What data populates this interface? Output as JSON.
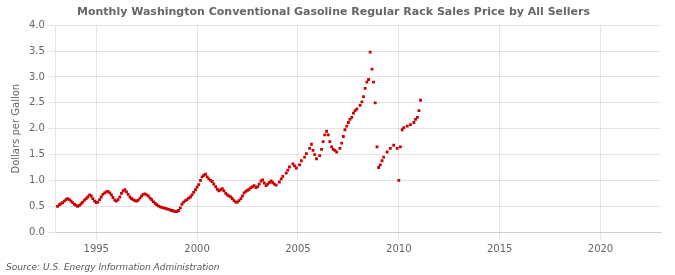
{
  "chart_data": {
    "type": "scatter",
    "title": "Monthly Washington Conventional Gasoline Regular Rack Sales Price by All Sellers",
    "y_label": "Dollars per Gallon",
    "source": "Source: U.S. Energy Information Administration",
    "color": "#CC0000",
    "marker": "square",
    "grid": true,
    "xlim": [
      1993.0,
      2023.0
    ],
    "ylim": [
      0.0,
      4.0
    ],
    "xticks": [
      1995,
      2000,
      2005,
      2010,
      2015,
      2020
    ],
    "yticks": [
      {
        "value": 0,
        "label": "0.0"
      },
      0.5,
      {
        "value": 1,
        "label": "1.0"
      },
      1.5,
      {
        "value": 2,
        "label": "2.0"
      },
      2.5,
      {
        "value": 3,
        "label": "3.0"
      },
      3.5,
      {
        "value": 4,
        "label": "4.0"
      }
    ],
    "x": [
      1993.08,
      1993.17,
      1993.25,
      1993.33,
      1993.42,
      1993.5,
      1993.58,
      1993.67,
      1993.75,
      1993.83,
      1993.92,
      1994.0,
      1994.08,
      1994.17,
      1994.25,
      1994.33,
      1994.42,
      1994.5,
      1994.58,
      1994.67,
      1994.75,
      1994.83,
      1994.92,
      1995.0,
      1995.08,
      1995.17,
      1995.25,
      1995.33,
      1995.42,
      1995.5,
      1995.58,
      1995.67,
      1995.75,
      1995.83,
      1995.92,
      1996.0,
      1996.08,
      1996.17,
      1996.25,
      1996.33,
      1996.42,
      1996.5,
      1996.58,
      1996.67,
      1996.75,
      1996.83,
      1996.92,
      1997.0,
      1997.08,
      1997.17,
      1997.25,
      1997.33,
      1997.42,
      1997.5,
      1997.58,
      1997.67,
      1997.75,
      1997.83,
      1997.92,
      1998.0,
      1998.08,
      1998.17,
      1998.25,
      1998.33,
      1998.42,
      1998.5,
      1998.58,
      1998.67,
      1998.75,
      1998.83,
      1998.92,
      1999.0,
      1999.08,
      1999.17,
      1999.25,
      1999.33,
      1999.42,
      1999.5,
      1999.58,
      1999.67,
      1999.75,
      1999.83,
      1999.92,
      2000.0,
      2000.08,
      2000.17,
      2000.25,
      2000.33,
      2000.42,
      2000.5,
      2000.58,
      2000.67,
      2000.75,
      2000.83,
      2000.92,
      2001.0,
      2001.08,
      2001.17,
      2001.25,
      2001.33,
      2001.42,
      2001.5,
      2001.58,
      2001.67,
      2001.75,
      2001.83,
      2001.92,
      2002.0,
      2002.08,
      2002.17,
      2002.25,
      2002.33,
      2002.42,
      2002.5,
      2002.58,
      2002.67,
      2002.75,
      2002.83,
      2002.92,
      2003.0,
      2003.08,
      2003.17,
      2003.25,
      2003.33,
      2003.42,
      2003.5,
      2003.58,
      2003.67,
      2003.75,
      2003.83,
      2003.92,
      2004.08,
      2004.17,
      2004.25,
      2004.42,
      2004.5,
      2004.58,
      2004.75,
      2004.83,
      2004.92,
      2005.08,
      2005.17,
      2005.33,
      2005.42,
      2005.58,
      2005.67,
      2005.75,
      2005.83,
      2005.92,
      2006.08,
      2006.17,
      2006.25,
      2006.33,
      2006.42,
      2006.5,
      2006.58,
      2006.67,
      2006.75,
      2006.83,
      2006.92,
      2007.08,
      2007.17,
      2007.25,
      2007.33,
      2007.42,
      2007.5,
      2007.58,
      2007.67,
      2007.75,
      2007.83,
      2007.92,
      2008.08,
      2008.17,
      2008.25,
      2008.33,
      2008.42,
      2008.5,
      2008.58,
      2008.67,
      2008.75,
      2008.83,
      2008.92,
      2009.0,
      2009.08,
      2009.17,
      2009.25,
      2009.42,
      2009.58,
      2009.75,
      2009.92,
      2010.0,
      2010.08,
      2010.17,
      2010.25,
      2010.42,
      2010.58,
      2010.75,
      2010.83,
      2010.92,
      2011.0,
      2011.08
    ],
    "values": [
      0.5,
      0.53,
      0.55,
      0.57,
      0.6,
      0.63,
      0.65,
      0.63,
      0.6,
      0.57,
      0.54,
      0.52,
      0.5,
      0.52,
      0.55,
      0.58,
      0.62,
      0.65,
      0.68,
      0.72,
      0.7,
      0.65,
      0.6,
      0.57,
      0.58,
      0.63,
      0.68,
      0.73,
      0.76,
      0.78,
      0.79,
      0.76,
      0.72,
      0.67,
      0.62,
      0.6,
      0.63,
      0.68,
      0.75,
      0.8,
      0.82,
      0.78,
      0.73,
      0.68,
      0.65,
      0.63,
      0.61,
      0.6,
      0.62,
      0.66,
      0.7,
      0.73,
      0.74,
      0.72,
      0.7,
      0.66,
      0.63,
      0.59,
      0.56,
      0.53,
      0.51,
      0.49,
      0.48,
      0.47,
      0.46,
      0.45,
      0.44,
      0.43,
      0.42,
      0.41,
      0.4,
      0.4,
      0.42,
      0.47,
      0.54,
      0.58,
      0.61,
      0.63,
      0.66,
      0.68,
      0.72,
      0.77,
      0.82,
      0.87,
      0.92,
      1.0,
      1.07,
      1.1,
      1.12,
      1.07,
      1.03,
      1.0,
      0.98,
      0.93,
      0.88,
      0.83,
      0.8,
      0.82,
      0.84,
      0.8,
      0.75,
      0.72,
      0.7,
      0.68,
      0.65,
      0.61,
      0.58,
      0.58,
      0.61,
      0.65,
      0.7,
      0.76,
      0.79,
      0.81,
      0.83,
      0.86,
      0.88,
      0.9,
      0.86,
      0.88,
      0.93,
      0.99,
      1.01,
      0.95,
      0.9,
      0.93,
      0.96,
      0.99,
      0.96,
      0.93,
      0.91,
      0.97,
      1.03,
      1.08,
      1.14,
      1.2,
      1.26,
      1.32,
      1.28,
      1.24,
      1.3,
      1.38,
      1.45,
      1.52,
      1.62,
      1.7,
      1.58,
      1.5,
      1.42,
      1.48,
      1.6,
      1.75,
      1.88,
      1.95,
      1.88,
      1.75,
      1.65,
      1.6,
      1.58,
      1.55,
      1.62,
      1.72,
      1.85,
      1.98,
      2.05,
      2.12,
      2.18,
      2.22,
      2.3,
      2.35,
      2.38,
      2.45,
      2.52,
      2.62,
      2.78,
      2.9,
      2.95,
      3.48,
      3.15,
      2.9,
      2.5,
      1.65,
      1.25,
      1.3,
      1.38,
      1.45,
      1.55,
      1.62,
      1.68,
      1.62,
      1.0,
      1.65,
      1.98,
      2.02,
      2.05,
      2.08,
      2.12,
      2.18,
      2.22,
      2.35,
      2.55
    ]
  }
}
